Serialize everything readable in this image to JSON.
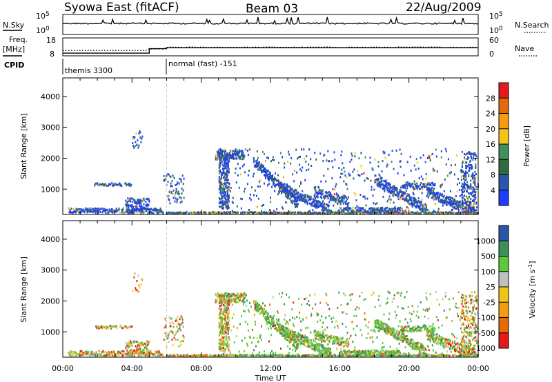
{
  "header": {
    "station": "Syowa East (fitACF)",
    "beam": "Beam 03",
    "date": "22/Aug/2009"
  },
  "sky_panel": {
    "left_label": "N.Sky",
    "left_ticks": [
      "10^5",
      "10^0"
    ],
    "right_label": "N.Search",
    "right_ticks": [
      "10^5",
      "10^0"
    ]
  },
  "freq_panel": {
    "left_label_1": "Freq.",
    "left_label_2": "[MHz]",
    "left_ticks": [
      "18",
      "8"
    ],
    "right_label": "Nave",
    "right_ticks": [
      "60",
      "0"
    ]
  },
  "cpid_panel": {
    "label": "CPID",
    "modes": [
      "themis 3300",
      "normal (fast) -151"
    ]
  },
  "colors": {
    "blue": "#1f3cff",
    "dark_blue": "#2a55a8",
    "dark_green": "#2e6b3f",
    "green": "#3f8f5a",
    "light_green": "#5cc83a",
    "yellow": "#f2c418",
    "orange": "#f39c12",
    "dark_orange": "#e56b0a",
    "red": "#e31a1c",
    "gray": "#c0c0c0"
  },
  "chart_data": [
    {
      "type": "heatmap",
      "title": "",
      "xlabel": "",
      "ylabel": "Slant Range [km]",
      "x_range": [
        "00:00",
        "24:00"
      ],
      "x_tick_labels": [
        "00:00",
        "04:00",
        "08:00",
        "12:00",
        "16:00",
        "20:00",
        "00:00"
      ],
      "ylim": [
        180,
        4600
      ],
      "y_ticks": [
        1000,
        2000,
        3000,
        4000
      ],
      "y_tick_labels": [
        "1000",
        "2000",
        "3000",
        "4000"
      ],
      "colorbar": {
        "label": "Power [dB]",
        "ticks": [
          "4",
          "8",
          "12",
          "16",
          "20",
          "24",
          "28"
        ],
        "colors": [
          "#1f3cff",
          "#2a55a8",
          "#2e6b3f",
          "#3f8f5a",
          "#f2c418",
          "#f39c12",
          "#e56b0a",
          "#e31a1c"
        ]
      },
      "vertical_marker_time": "06:00"
    },
    {
      "type": "heatmap",
      "title": "",
      "xlabel": "Time UT",
      "ylabel": "Slant Range [km]",
      "x_range": [
        "00:00",
        "24:00"
      ],
      "x_tick_labels": [
        "00:00",
        "04:00",
        "08:00",
        "12:00",
        "16:00",
        "20:00",
        "00:00"
      ],
      "ylim": [
        180,
        4600
      ],
      "y_ticks": [
        1000,
        2000,
        3000,
        4000
      ],
      "y_tick_labels": [
        "1000",
        "2000",
        "3000",
        "4000"
      ],
      "colorbar": {
        "label": "Velocity [m s^-1]",
        "ticks": [
          "1000",
          "500",
          "100",
          "25",
          "-25",
          "-100",
          "-500",
          "-1000"
        ],
        "colors": [
          "#2a55a8",
          "#3f8f5a",
          "#5cc83a",
          "#c0c0c0",
          "#f2c418",
          "#f39c12",
          "#e56b0a",
          "#e31a1c"
        ]
      },
      "vertical_marker_time": "06:00"
    }
  ]
}
